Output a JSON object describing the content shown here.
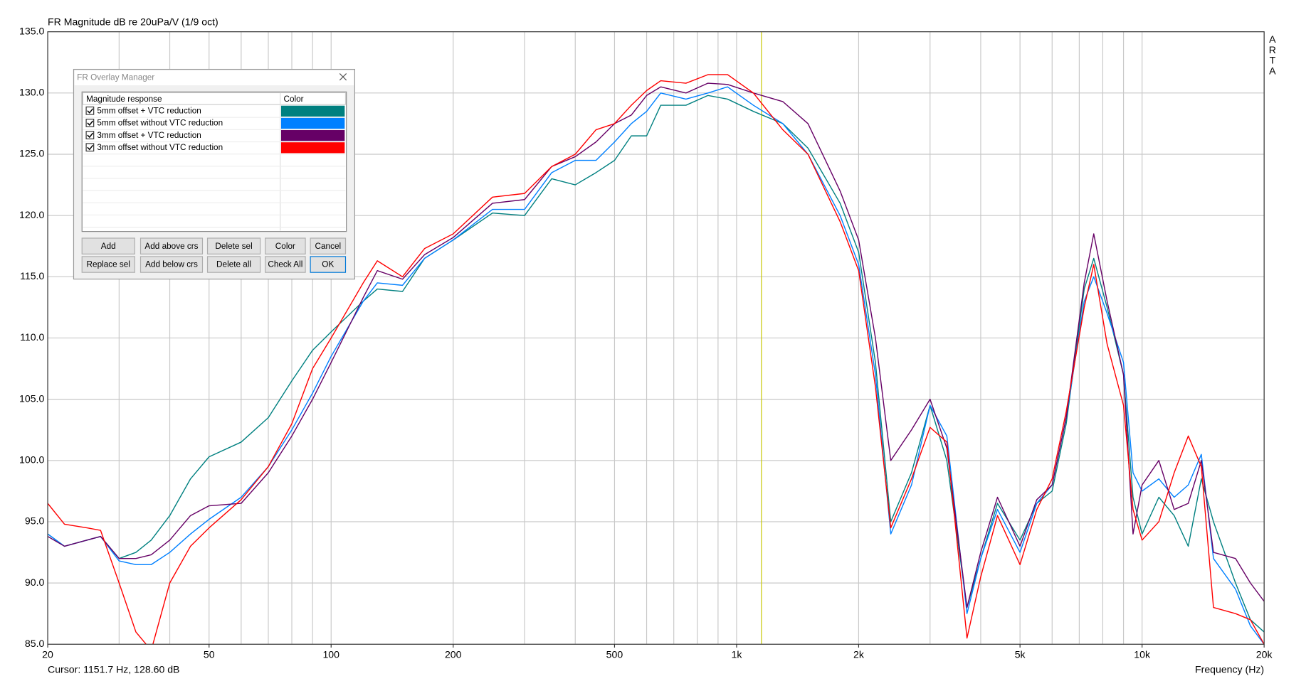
{
  "chart_data": {
    "type": "line",
    "title": "FR Magnitude dB re 20uPa/V (1/9 oct)",
    "brand": "ARTA",
    "x_label": "Frequency (Hz)",
    "log_x": true,
    "grid": true,
    "xlim": [
      20,
      20000
    ],
    "ylim": [
      85,
      135
    ],
    "xticks": [
      20,
      50,
      100,
      200,
      500,
      {
        "value": 1000,
        "label": "1k"
      },
      {
        "value": 2000,
        "label": "2k"
      },
      {
        "value": 5000,
        "label": "5k"
      },
      {
        "value": 10000,
        "label": "10k"
      },
      {
        "value": 20000,
        "label": "20k"
      }
    ],
    "xgrid": [
      20,
      30,
      40,
      50,
      60,
      70,
      80,
      90,
      100,
      200,
      300,
      400,
      500,
      600,
      700,
      800,
      900,
      1000,
      2000,
      3000,
      4000,
      5000,
      6000,
      7000,
      8000,
      9000,
      10000,
      20000
    ],
    "yticks": [
      {
        "value": 85,
        "label": "85.0"
      },
      {
        "value": 90,
        "label": "90.0"
      },
      {
        "value": 95,
        "label": "95.0"
      },
      {
        "value": 100,
        "label": "100.0"
      },
      {
        "value": 105,
        "label": "105.0"
      },
      {
        "value": 110,
        "label": "110.0"
      },
      {
        "value": 115,
        "label": "115.0"
      },
      {
        "value": 120,
        "label": "120.0"
      },
      {
        "value": 125,
        "label": "125.0"
      },
      {
        "value": 130,
        "label": "130.0"
      },
      {
        "value": 135,
        "label": "135.0"
      }
    ],
    "cursor": {
      "x": 1151.7,
      "y": 128.6,
      "color": "#c8c800",
      "label": "Cursor: 1151.7 Hz, 128.60 dB"
    },
    "x": [
      20,
      22,
      25,
      27,
      30,
      33,
      36,
      40,
      45,
      50,
      60,
      70,
      80,
      90,
      100,
      120,
      130,
      150,
      170,
      200,
      250,
      300,
      350,
      400,
      450,
      500,
      550,
      600,
      650,
      750,
      850,
      950,
      1100,
      1300,
      1500,
      1800,
      2000,
      2200,
      2400,
      2700,
      3000,
      3300,
      3700,
      4000,
      4400,
      5000,
      5500,
      6000,
      6500,
      7200,
      7600,
      8200,
      9000,
      9500,
      10000,
      11000,
      12000,
      13000,
      14000,
      15000,
      17000,
      18500,
      20000
    ],
    "series": [
      {
        "name": "5mm offset + VTC reduction",
        "color": "#008080",
        "values": [
          94,
          93,
          93.5,
          93.8,
          92,
          92.5,
          93.5,
          95.5,
          98.5,
          100.3,
          101.5,
          103.5,
          106.5,
          109,
          110.5,
          113,
          114,
          113.8,
          116.5,
          118,
          120.2,
          120,
          123,
          122.5,
          123.5,
          124.5,
          126.5,
          126.5,
          129,
          129,
          129.8,
          129.5,
          128.5,
          127.5,
          125.5,
          121,
          117,
          108,
          95,
          99,
          104.5,
          100,
          88,
          92,
          96.5,
          93.5,
          96.5,
          97.5,
          103,
          114,
          116.5,
          112.5,
          107,
          97,
          94,
          97,
          95.5,
          93,
          98.5,
          95,
          90,
          87,
          86
        ]
      },
      {
        "name": "5mm offset without VTC reduction",
        "color": "#0080ff",
        "values": [
          94,
          93,
          93.5,
          93.8,
          91.8,
          91.5,
          91.5,
          92.5,
          94,
          95.2,
          97,
          99.5,
          102.5,
          105.5,
          108.5,
          113,
          114.5,
          114.3,
          116.5,
          118,
          120.5,
          120.5,
          123.5,
          124.5,
          124.5,
          126,
          127.5,
          128.5,
          130,
          129.5,
          130,
          130.5,
          129,
          127.5,
          125,
          120,
          116,
          107,
          94,
          98,
          104.5,
          102,
          87.5,
          92,
          96,
          92.5,
          96.5,
          98,
          103.5,
          113,
          115,
          112,
          108,
          99,
          97.5,
          98.5,
          97,
          98,
          100.5,
          92,
          89.5,
          86.5,
          85
        ]
      },
      {
        "name": "3mm offset + VTC reduction",
        "color": "#660066",
        "values": [
          93.8,
          93,
          93.5,
          93.8,
          92,
          92,
          92.3,
          93.5,
          95.5,
          96.3,
          96.5,
          99,
          102,
          105,
          108,
          113.3,
          115.5,
          114.8,
          116.8,
          118.2,
          121,
          121.3,
          124,
          124.8,
          126,
          127.5,
          128.2,
          129.8,
          130.5,
          130,
          130.8,
          130.7,
          130,
          129.3,
          127.5,
          122,
          118,
          110,
          100,
          102.5,
          105,
          101,
          88,
          92.5,
          97,
          93,
          96.8,
          98,
          103.5,
          114.5,
          118.5,
          113,
          107,
          94,
          98,
          100,
          96,
          96.5,
          100,
          92.5,
          92,
          90,
          88.5
        ]
      },
      {
        "name": "3mm offset without VTC reduction",
        "color": "#ff0000",
        "values": [
          96.5,
          94.8,
          94.5,
          94.3,
          90,
          86,
          84.5,
          90,
          93,
          94.5,
          96.8,
          99.5,
          103,
          107.5,
          110,
          114.5,
          116.3,
          115,
          117.3,
          118.5,
          121.5,
          121.8,
          124,
          125,
          127,
          127.5,
          129,
          130.2,
          131,
          130.8,
          131.5,
          131.5,
          130,
          127,
          125,
          119.5,
          115.5,
          106,
          94.5,
          98.5,
          102.7,
          101.5,
          85.5,
          90.5,
          95.5,
          91.5,
          96,
          98.5,
          104,
          112.5,
          116,
          109.5,
          104.5,
          96,
          93.5,
          95,
          99,
          102,
          99.5,
          88,
          87.5,
          87,
          85
        ]
      }
    ]
  },
  "dialog": {
    "title": "FR Overlay Manager",
    "columns": [
      "Magnitude response",
      "Color"
    ],
    "buttons": [
      "Add",
      "Add above crs",
      "Delete sel",
      "Color",
      "Cancel",
      "Replace sel",
      "Add below crs",
      "Delete all",
      "Check All",
      "OK"
    ]
  }
}
